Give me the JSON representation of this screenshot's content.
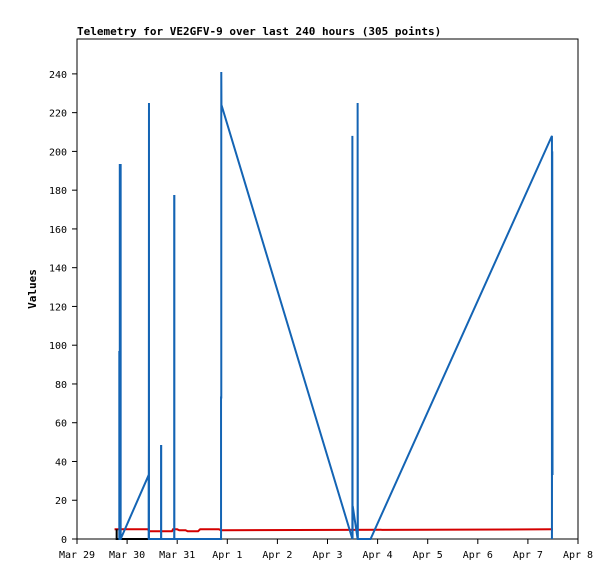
{
  "chart_data": {
    "type": "line",
    "title": "Telemetry for VE2GFV-9 over last 240 hours (305 points)",
    "xlabel": "",
    "ylabel": "Values",
    "x_tick_labels": [
      "Mar 29",
      "Mar 30",
      "Mar 31",
      "Apr 1",
      "Apr 2",
      "Apr 3",
      "Apr 4",
      "Apr 5",
      "Apr 6",
      "Apr 7",
      "Apr 8"
    ],
    "xlim": [
      "Mar 29 00:00",
      "Apr 8 00:00"
    ],
    "y_ticks": [
      0,
      20,
      40,
      60,
      80,
      100,
      120,
      140,
      160,
      180,
      200,
      220,
      240
    ],
    "ylim": [
      0,
      258
    ],
    "grid": false,
    "legend": "none",
    "series": [
      {
        "color": "#1464b4",
        "x": [
          "Mar 29 20:16",
          "Mar 29 20:16",
          "Mar 29 20:20",
          "Mar 29 20:30",
          "Mar 29 20:30",
          "Mar 29 20:36",
          "Mar 29 20:36",
          "Mar 29 20:50",
          "Mar 29 20:50",
          "Mar 29 20:55",
          "Mar 29 20:55",
          "Mar 30 10:20",
          "Mar 30 10:20",
          "Mar 30 10:25",
          "Mar 30 10:25",
          "Mar 30 10:29",
          "Mar 30 10:29",
          "Mar 30 16:16",
          "Mar 30 16:16",
          "Mar 30 16:20",
          "Mar 30 16:20",
          "Mar 30 22:34",
          "Mar 30 22:34",
          "Mar 30 22:38",
          "Mar 30 22:38",
          "Mar 31 21:00",
          "Mar 31 21:00",
          "Mar 31 21:07",
          "Mar 31 21:07",
          "Mar 31 21:12",
          "Apr 3 11:55",
          "Apr 3 11:55",
          "Apr 3 12:00",
          "Apr 3 12:00",
          "Apr 3 12:05",
          "Apr 3 12:05",
          "Apr 3 14:26",
          "Apr 3 14:26",
          "Apr 3 14:32",
          "Apr 3 20:38",
          "Apr 7 11:31",
          "Apr 7 11:31",
          "Apr 7 11:40",
          "Apr 7 11:40",
          "Apr 7 11:48"
        ],
        "values": [
          0,
          97,
          0,
          0,
          193,
          193,
          0,
          0,
          193,
          193,
          0,
          33,
          0,
          48,
          40,
          225,
          0,
          0,
          48,
          48,
          0,
          0,
          177,
          177,
          0,
          0,
          73,
          73,
          241,
          224,
          0,
          208,
          0,
          0,
          17,
          17,
          0,
          225,
          0,
          0,
          208,
          0,
          200,
          200,
          33
        ]
      },
      {
        "color": "#d40000",
        "x": [
          "Mar 29 18:00",
          "Mar 30 10:00",
          "Mar 30 10:30",
          "Mar 30 21:30",
          "Mar 30 22:00",
          "Mar 31 00:00",
          "Mar 31 01:00",
          "Mar 31 04:00",
          "Mar 31 05:00",
          "Mar 31 10:00",
          "Mar 31 11:00",
          "Mar 31 20:00",
          "Mar 31 21:00",
          "Apr 7 12:00"
        ],
        "values": [
          5,
          5,
          4,
          4,
          5,
          5,
          4.5,
          4.5,
          4,
          4,
          5,
          5,
          4.5,
          5
        ]
      },
      {
        "color": "#000000",
        "x": [
          "Mar 29 19:00",
          "Mar 29 19:00",
          "Mar 30 10:00"
        ],
        "values": [
          5,
          0,
          0
        ]
      }
    ]
  }
}
